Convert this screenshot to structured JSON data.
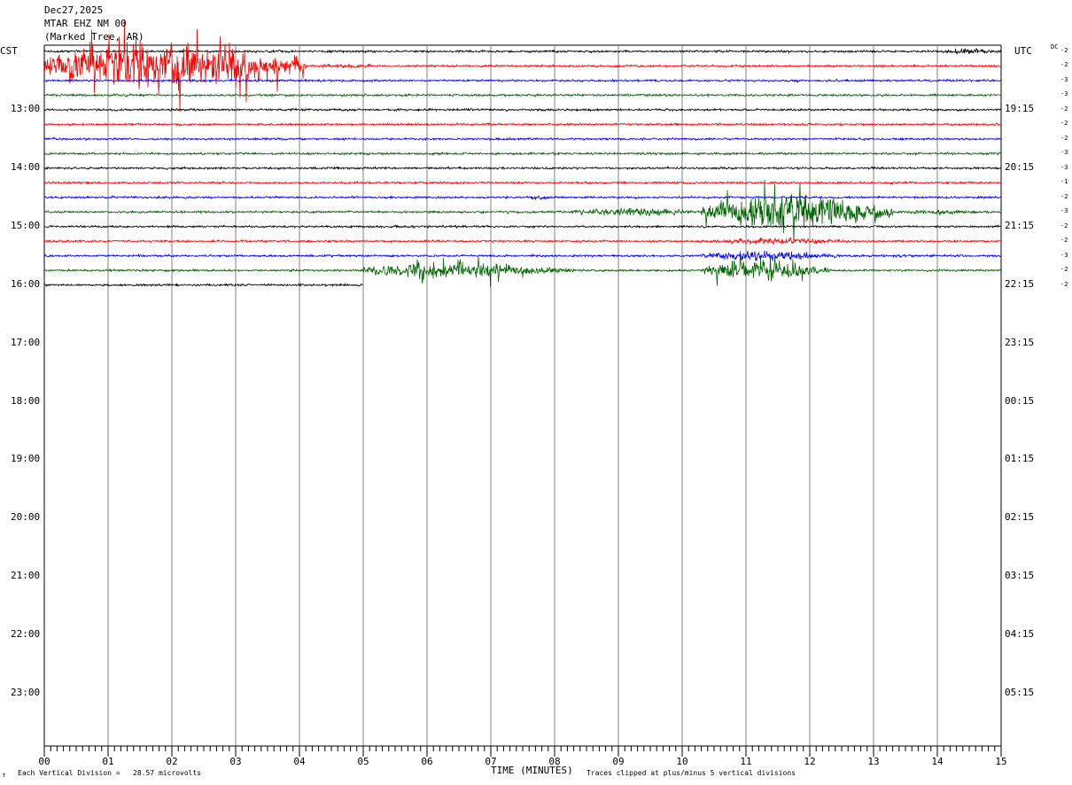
{
  "header": {
    "date": "Dec27,2025",
    "station": "MTAR EHZ NM 00",
    "location": "(Marked Tree, AR)"
  },
  "left_timezone": "CST",
  "right_timezone": "UTC",
  "dc_label": "DC",
  "footer": {
    "mark": "↑",
    "division_note": "Each Vertical Division =   28.57 microvolts",
    "xaxis_title": "TIME (MINUTES)",
    "clip_note": "Traces clipped at plus/minus 5 vertical divisions"
  },
  "colors": {
    "black": "#000000",
    "red": "#ff0000",
    "blue": "#0000ff",
    "green": "#006400",
    "grid": "#808080"
  },
  "chart_data": {
    "type": "line",
    "title": "Dec27,2025 MTAR EHZ NM 00 (Marked Tree, AR)",
    "xlabel": "TIME (MINUTES)",
    "xlim": [
      0,
      15
    ],
    "x_ticks": [
      "00",
      "01",
      "02",
      "03",
      "04",
      "05",
      "06",
      "07",
      "08",
      "09",
      "10",
      "11",
      "12",
      "13",
      "14",
      "15"
    ],
    "rows_per_hour": 4,
    "total_hours": 12,
    "left_hour_labels": [
      "13:00",
      "14:00",
      "15:00",
      "16:00",
      "17:00",
      "18:00",
      "19:00",
      "20:00",
      "21:00",
      "22:00",
      "23:00"
    ],
    "right_hour_labels": [
      "19:15",
      "20:15",
      "21:15",
      "22:15",
      "23:15",
      "00:15",
      "01:15",
      "02:15",
      "03:15",
      "04:15",
      "05:15"
    ],
    "traces": [
      {
        "row": 0,
        "color": "black",
        "dc": "-2",
        "end_min": 15,
        "bursts": [
          [
            14.0,
            15.0,
            2.5
          ]
        ]
      },
      {
        "row": 1,
        "color": "red",
        "dc": "-2",
        "end_min": 15,
        "bursts": [
          [
            0.0,
            4.1,
            20
          ],
          [
            4.1,
            5.5,
            1.8
          ]
        ]
      },
      {
        "row": 2,
        "color": "blue",
        "dc": "-3",
        "end_min": 15,
        "bursts": []
      },
      {
        "row": 3,
        "color": "green",
        "dc": "-3",
        "end_min": 15,
        "bursts": []
      },
      {
        "row": 4,
        "color": "black",
        "dc": "-2",
        "end_min": 15,
        "bursts": []
      },
      {
        "row": 5,
        "color": "red",
        "dc": "-2",
        "end_min": 15,
        "bursts": []
      },
      {
        "row": 6,
        "color": "blue",
        "dc": "-2",
        "end_min": 15,
        "bursts": []
      },
      {
        "row": 7,
        "color": "green",
        "dc": "-3",
        "end_min": 15,
        "bursts": []
      },
      {
        "row": 8,
        "color": "black",
        "dc": "-3",
        "end_min": 15,
        "bursts": []
      },
      {
        "row": 9,
        "color": "red",
        "dc": "-1",
        "end_min": 15,
        "bursts": []
      },
      {
        "row": 10,
        "color": "blue",
        "dc": "-2",
        "end_min": 15,
        "bursts": [
          [
            7.5,
            8.0,
            1.6
          ]
        ]
      },
      {
        "row": 11,
        "color": "green",
        "dc": "-3",
        "end_min": 15,
        "bursts": [
          [
            8.2,
            10.3,
            3.5
          ],
          [
            10.3,
            13.3,
            14
          ],
          [
            13.3,
            15.0,
            2.0
          ]
        ]
      },
      {
        "row": 12,
        "color": "black",
        "dc": "-2",
        "end_min": 15,
        "bursts": []
      },
      {
        "row": 13,
        "color": "red",
        "dc": "-2",
        "end_min": 15,
        "bursts": [
          [
            10.3,
            13.0,
            2.5
          ]
        ]
      },
      {
        "row": 14,
        "color": "blue",
        "dc": "-3",
        "end_min": 15,
        "bursts": [
          [
            10.3,
            12.5,
            4.0
          ]
        ]
      },
      {
        "row": 15,
        "color": "green",
        "dc": "-2",
        "end_min": 15,
        "bursts": [
          [
            5.0,
            8.3,
            6.0
          ],
          [
            10.3,
            12.3,
            8.0
          ]
        ]
      },
      {
        "row": 16,
        "color": "black",
        "dc": "-2",
        "end_min": 5,
        "bursts": []
      }
    ]
  }
}
